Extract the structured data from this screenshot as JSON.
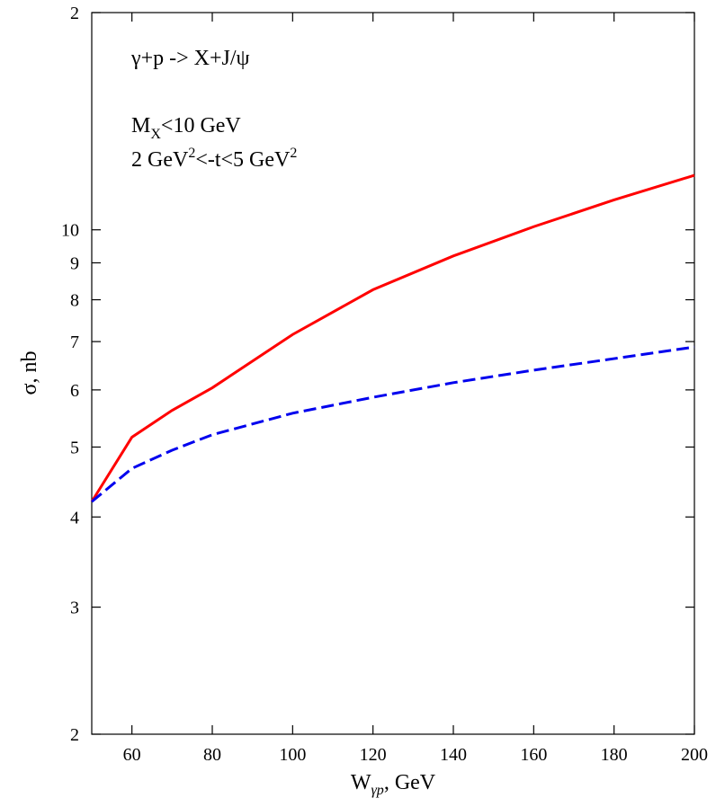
{
  "chart_data": {
    "type": "line",
    "xlabel": [
      "W",
      "γp",
      ", GeV"
    ],
    "ylabel": "σ, nb",
    "annotations": [
      [
        "γ+p -> X+J/ψ"
      ],
      [
        "M",
        "X",
        "<10 GeV"
      ],
      [
        "2 GeV",
        "2",
        "<-t<5 GeV",
        "2"
      ]
    ],
    "x": [
      50,
      60,
      70,
      80,
      100,
      120,
      140,
      160,
      180,
      200
    ],
    "series": [
      {
        "color": "#ff0000",
        "dash": false,
        "values": [
          4.2,
          5.16,
          5.62,
          6.04,
          7.16,
          8.26,
          9.2,
          10.1,
          11.0,
          11.9
        ]
      },
      {
        "color": "#0000ee",
        "dash": true,
        "values": [
          4.2,
          4.67,
          4.95,
          5.2,
          5.57,
          5.86,
          6.14,
          6.39,
          6.63,
          6.88
        ]
      }
    ],
    "xlim": [
      50,
      200
    ],
    "xticks": [
      60,
      80,
      100,
      120,
      140,
      160,
      180,
      200
    ],
    "ylim": [
      2,
      20
    ],
    "ylog": true,
    "yticks": [
      2,
      3,
      4,
      5,
      6,
      7,
      8,
      9,
      10,
      {
        "value": 20,
        "label": "2"
      }
    ]
  }
}
